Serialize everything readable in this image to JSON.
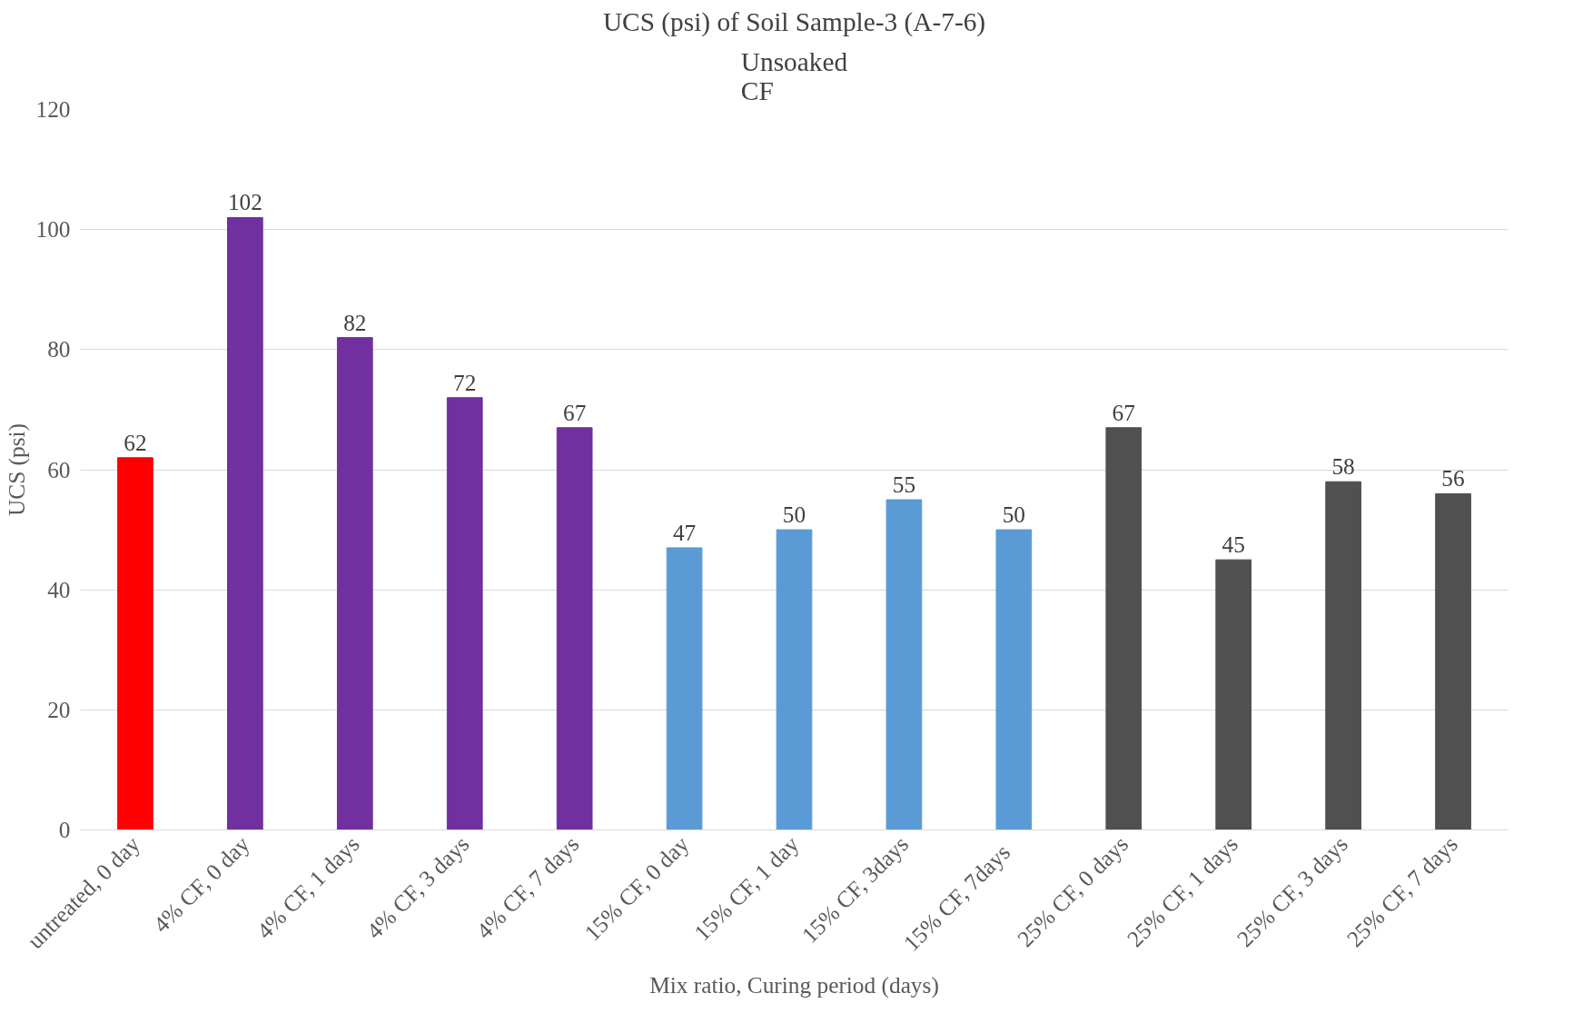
{
  "chart_data": {
    "type": "bar",
    "title": "UCS (psi) of Soil Sample-3 (A-7-6)",
    "subtitle": "Unsoaked\nCF",
    "xlabel": "Mix ratio, Curing period (days)",
    "ylabel": "UCS (psi)",
    "categories": [
      "untreated, 0 day",
      "4% CF, 0 day",
      "4% CF, 1 days",
      "4% CF, 3 days",
      "4% CF, 7 days",
      "15% CF, 0 day",
      "15% CF, 1 day",
      "15% CF, 3days",
      "15% CF,   7days",
      "25% CF, 0 days",
      "25% CF, 1 days",
      "25% CF, 3 days",
      "25% CF, 7 days"
    ],
    "values": [
      62,
      102,
      82,
      72,
      67,
      47,
      50,
      55,
      50,
      67,
      45,
      58,
      56
    ],
    "colors": [
      "#ff0000",
      "#7030a0",
      "#7030a0",
      "#7030a0",
      "#7030a0",
      "#5b9bd5",
      "#5b9bd5",
      "#5b9bd5",
      "#5b9bd5",
      "#505050",
      "#505050",
      "#505050",
      "#505050"
    ],
    "ylim": [
      0,
      120
    ],
    "yticks": [
      0,
      20,
      40,
      60,
      80,
      100,
      120
    ],
    "grid": "y",
    "data_labels": true
  }
}
